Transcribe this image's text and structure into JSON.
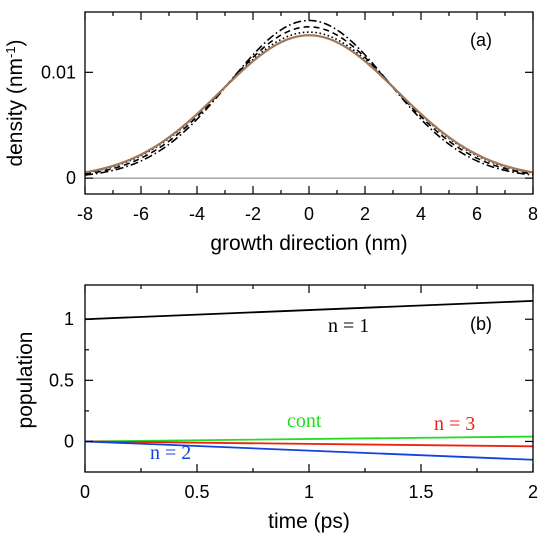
{
  "chart_data": [
    {
      "type": "line",
      "panel_label": "(a)",
      "xlabel": "growth direction (nm)",
      "ylabel": "density (nm",
      "ylabel_sup": "-1",
      "ylabel_tail": ")",
      "xlim": [
        -8,
        8
      ],
      "ylim": [
        -0.0015,
        0.0157
      ],
      "xticks": [
        -8,
        -6,
        -4,
        -2,
        0,
        2,
        4,
        6,
        8
      ],
      "xtick_labels": [
        "-8",
        "-6",
        "-4",
        "-2",
        "0",
        "2",
        "4",
        "6",
        "8"
      ],
      "yticks": [
        0,
        0.01
      ],
      "ytick_labels": [
        "0",
        "0.01"
      ],
      "baseline": 0,
      "curves": [
        {
          "style": "dash-dot",
          "color": "#000000",
          "peak": 0.0149,
          "width_nm": 2.85
        },
        {
          "style": "dashed",
          "color": "#000000",
          "peak": 0.0143,
          "width_nm": 2.98
        },
        {
          "style": "dotted",
          "color": "#000000",
          "peak": 0.0138,
          "width_nm": 3.1
        },
        {
          "style": "solid",
          "color": "#a0785a",
          "peak": 0.0135,
          "width_nm": 3.16
        }
      ]
    },
    {
      "type": "line",
      "panel_label": "(b)",
      "xlabel": "time (ps)",
      "ylabel": "population",
      "xlim": [
        0,
        2
      ],
      "ylim": [
        -0.25,
        1.28
      ],
      "xticks": [
        0,
        0.5,
        1,
        1.5,
        2
      ],
      "xtick_labels": [
        "0",
        "0.5",
        "1",
        "1.5",
        "2"
      ],
      "yticks": [
        0,
        0.5,
        1
      ],
      "ytick_labels": [
        "0",
        "0.5",
        "1"
      ],
      "series": [
        {
          "name": "n = 1",
          "color": "#000000",
          "x": [
            0,
            2
          ],
          "y": [
            1.0,
            1.15
          ]
        },
        {
          "name": "cont",
          "color": "#22dd22",
          "x": [
            0,
            2
          ],
          "y": [
            0.0,
            0.04
          ]
        },
        {
          "name": "n = 3",
          "color": "#ee2211",
          "x": [
            0,
            2
          ],
          "y": [
            0.0,
            -0.04
          ]
        },
        {
          "name": "n = 2",
          "color": "#1144dd",
          "x": [
            0,
            2
          ],
          "y": [
            0.0,
            -0.15
          ]
        }
      ]
    }
  ]
}
